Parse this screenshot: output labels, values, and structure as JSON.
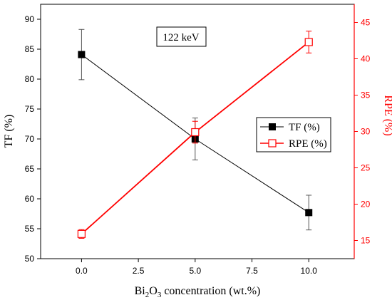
{
  "chart_data": {
    "type": "line",
    "annotation": "122 keV",
    "x": [
      0.0,
      5.0,
      10.0
    ],
    "xlabel": "concentration (wt.%)",
    "xlabel_chem": {
      "b1": "Bi",
      "s1": "2",
      "b2": "O",
      "s2": "3"
    },
    "xlim": [
      -1.8,
      12.0
    ],
    "xticks": [
      "0.0",
      "2.5",
      "5.0",
      "7.5",
      "10.0"
    ],
    "xtick_values": [
      0,
      2.5,
      5,
      7.5,
      10
    ],
    "series": [
      {
        "name": "TF (%)",
        "axis": "left",
        "color": "#000000",
        "marker": "filled-square",
        "values": [
          84.1,
          70.0,
          57.7
        ],
        "errors": [
          4.2,
          3.5,
          2.9
        ]
      },
      {
        "name": "RPE (%)",
        "axis": "right",
        "color": "#ff0000",
        "marker": "open-square",
        "values": [
          15.9,
          29.9,
          42.3
        ],
        "errors": [
          0.6,
          1.5,
          1.5
        ]
      }
    ],
    "left_axis": {
      "label": "TF (%)",
      "ylim": [
        50,
        92.5
      ],
      "ticks": [
        50,
        55,
        60,
        65,
        70,
        75,
        80,
        85,
        90
      ]
    },
    "right_axis": {
      "label": "RPE (%)",
      "ylim": [
        12.5,
        47.5
      ],
      "ticks": [
        15,
        20,
        25,
        30,
        35,
        40,
        45
      ],
      "color": "#ff0000"
    },
    "legend_position": "center-right",
    "grid": false
  }
}
